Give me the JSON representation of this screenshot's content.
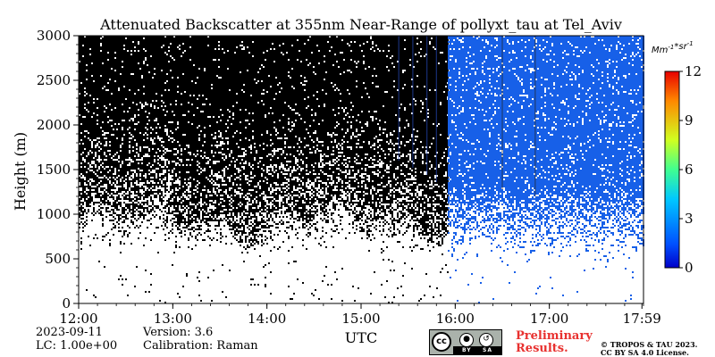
{
  "chart_data": {
    "type": "heatmap",
    "title": "Attenuated Backscatter at 355nm Near-Range of pollyxt_tau at Tel_Aviv",
    "xlabel": "UTC",
    "ylabel": "Height (m)",
    "x_range": [
      "12:00",
      "17:59"
    ],
    "x_ticks": [
      "12:00",
      "13:00",
      "14:00",
      "15:00",
      "16:00",
      "17:00",
      "17:59"
    ],
    "x_tick_minutes": [
      0,
      60,
      120,
      180,
      240,
      300,
      359
    ],
    "ylim": [
      0,
      3000
    ],
    "y_ticks": [
      0,
      500,
      1000,
      1500,
      2000,
      2500,
      3000
    ],
    "colorbar": {
      "unit": "Mm^{-1}*sr^{-1}",
      "range": [
        0,
        12
      ],
      "ticks": [
        0,
        3,
        6,
        9,
        12
      ],
      "colormap": "jet"
    },
    "regions": [
      {
        "time_from": "12:00",
        "time_to": "15:55",
        "description": "no data (black) above ~1000 m, sparse speckle below",
        "speckle_base_m": 600
      },
      {
        "time_from": "15:55",
        "time_to": "17:59",
        "description": "low signal (blue) above ~600 m, sparse speckle below",
        "speckle_base_m": 450,
        "typical_value": 0.5
      }
    ]
  },
  "footer": {
    "date": "2023-09-11",
    "lc": "LC: 1.00e+00",
    "version": "Version: 3.6",
    "calibration": "Calibration: Raman",
    "preliminary_line1": "Preliminary",
    "preliminary_line2": "Results.",
    "copyright_line1": "© TROPOS & TAU 2023.",
    "copyright_line2": "CC BY SA 4.0 License.",
    "license_badge": {
      "cc": "cc",
      "by": "BY",
      "sa": "SA"
    }
  },
  "colors": {
    "nodata": "#000000",
    "low_signal": "#1760e8",
    "background": "#ffffff",
    "preliminary": "#e8312f"
  }
}
